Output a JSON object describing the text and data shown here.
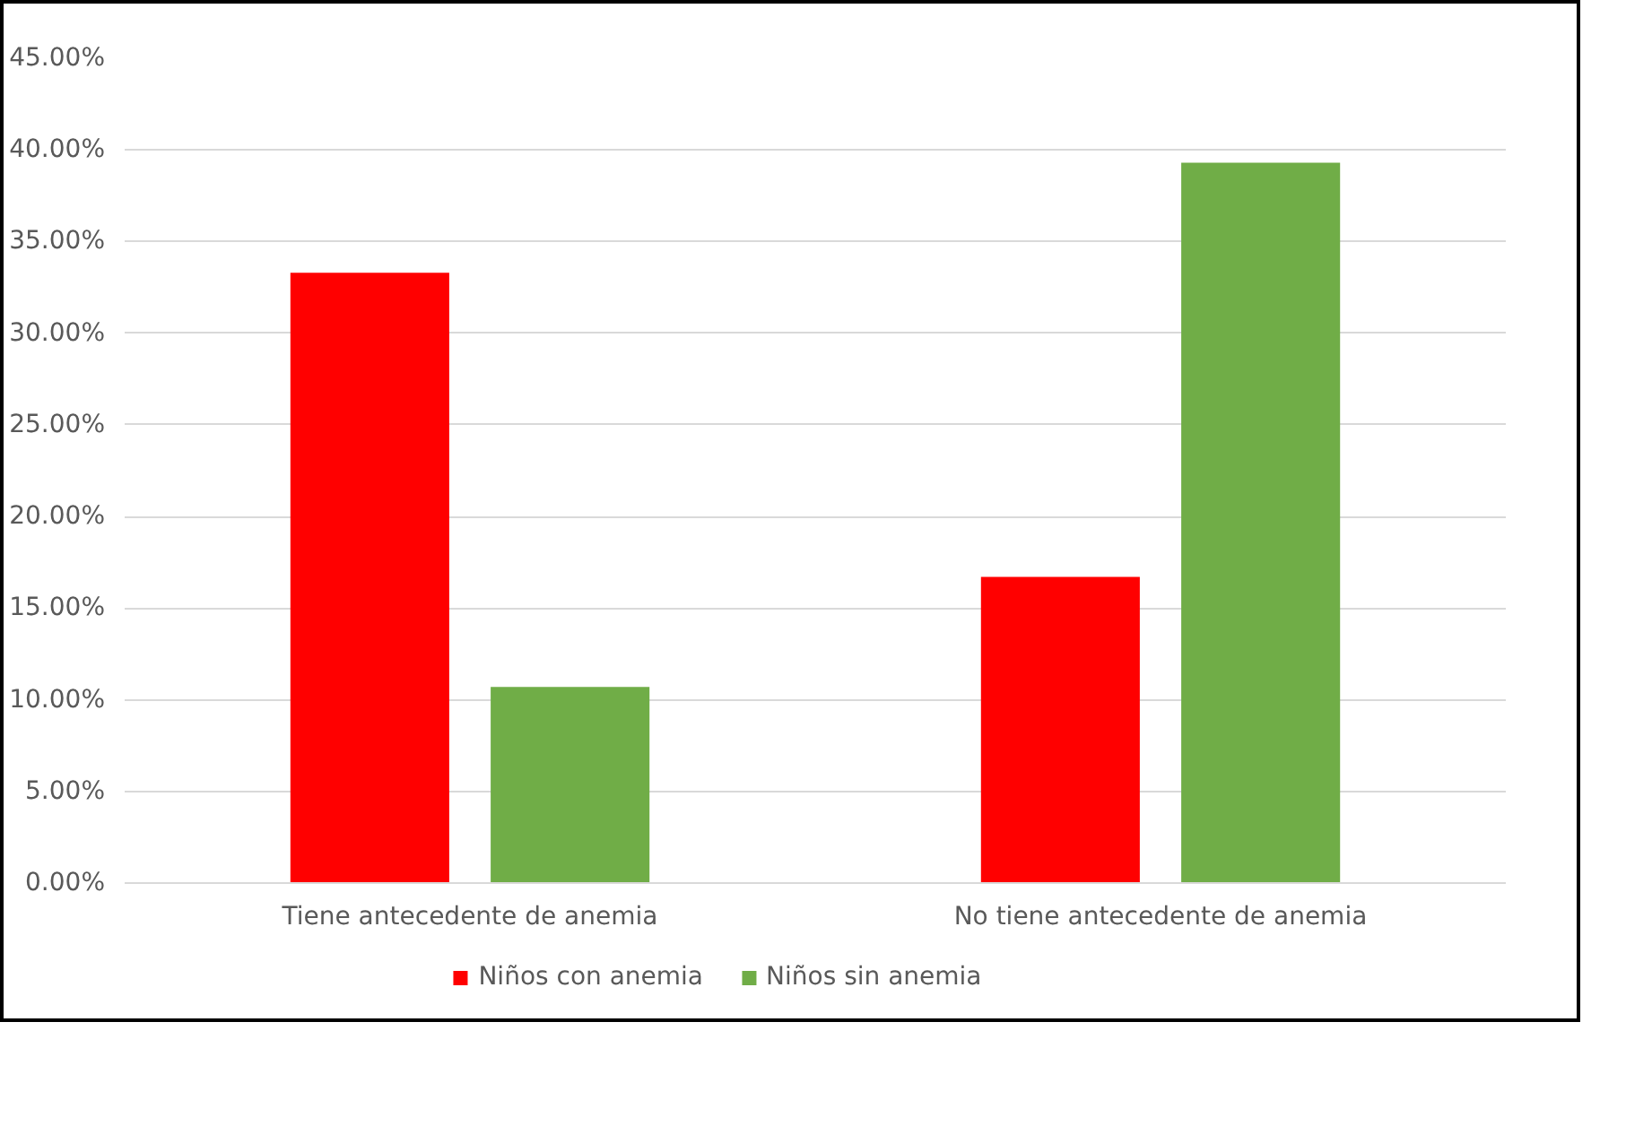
{
  "chart_data": {
    "type": "bar",
    "categories": [
      "Tiene antecedente de anemia",
      "No tiene antecedente de anemia"
    ],
    "series": [
      {
        "name": "Niños con anemia",
        "color": "#ff0000",
        "values": [
          33.3,
          16.7
        ]
      },
      {
        "name": "Niños sin anemia",
        "color": "#70ad47",
        "values": [
          10.7,
          39.3
        ]
      }
    ],
    "ylim": [
      0,
      45
    ],
    "yticks": [
      {
        "value": 0,
        "label": "0.00%"
      },
      {
        "value": 5,
        "label": "5.00%"
      },
      {
        "value": 10,
        "label": "10.00%"
      },
      {
        "value": 15,
        "label": "15.00%"
      },
      {
        "value": 20,
        "label": "20.00%"
      },
      {
        "value": 25,
        "label": "25.00%"
      },
      {
        "value": 30,
        "label": "30.00%"
      },
      {
        "value": 35,
        "label": "35.00%"
      },
      {
        "value": 40,
        "label": "40.00%"
      },
      {
        "value": 45,
        "label": "45.00%"
      }
    ],
    "grid": "y",
    "legend": "bottom"
  }
}
